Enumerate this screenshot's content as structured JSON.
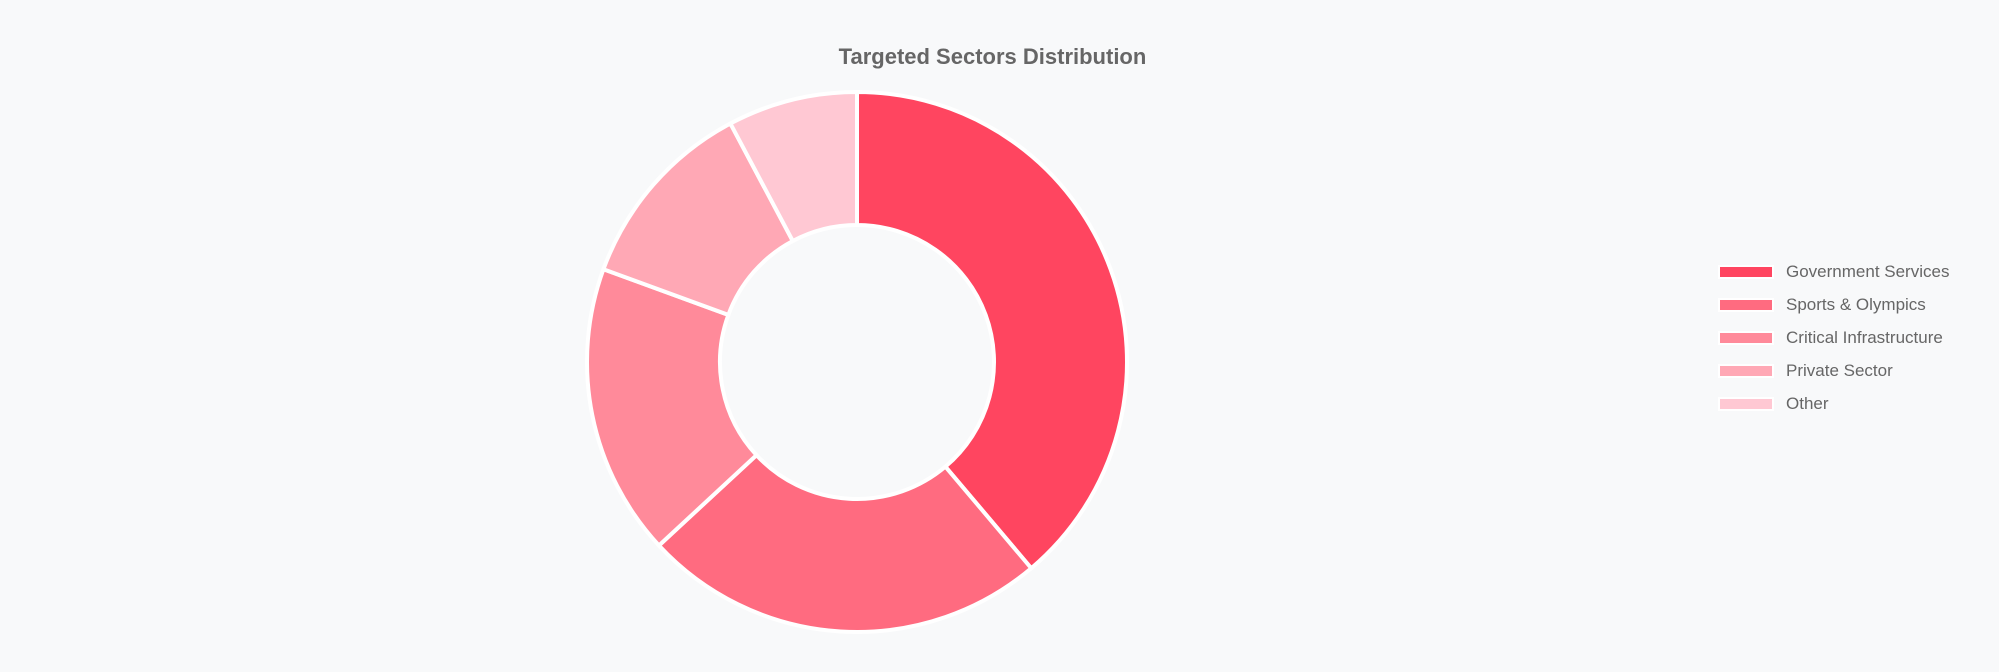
{
  "chart_data": {
    "type": "pie",
    "subtype": "doughnut",
    "title": "Targeted Sectors Distribution",
    "categories": [
      "Government Services",
      "Sports & Olympics",
      "Critical Infrastructure",
      "Private Sector",
      "Other"
    ],
    "values": [
      40,
      25,
      18,
      12,
      8
    ],
    "colors": [
      "#ff4560",
      "#ff6b80",
      "#ff8a9a",
      "#ffa8b5",
      "#ffc8d3"
    ],
    "legend_position": "right"
  }
}
